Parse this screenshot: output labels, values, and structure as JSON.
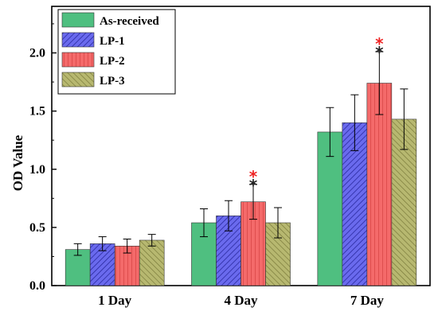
{
  "chart_data": {
    "type": "bar",
    "ylabel": "OD Value",
    "xlabel": "",
    "ylim": [
      0.0,
      2.4
    ],
    "yticks": [
      "0.0",
      "0.5",
      "1.0",
      "1.5",
      "2.0"
    ],
    "grid": false,
    "legend_position": "top-left",
    "categories": [
      "1 Day",
      "4 Day",
      "7 Day"
    ],
    "series": [
      {
        "name": "As-received",
        "color": "#4fbf80",
        "pattern": "solid",
        "values": [
          0.31,
          0.54,
          1.32
        ],
        "errors": [
          0.05,
          0.12,
          0.21
        ]
      },
      {
        "name": "LP-1",
        "color": "#6a6aee",
        "pattern": "hatch-forward",
        "values": [
          0.36,
          0.6,
          1.4
        ],
        "errors": [
          0.06,
          0.13,
          0.24
        ]
      },
      {
        "name": "LP-2",
        "color": "#f46a6a",
        "pattern": "hatch-vertical",
        "values": [
          0.34,
          0.72,
          1.74
        ],
        "errors": [
          0.06,
          0.15,
          0.27
        ]
      },
      {
        "name": "LP-3",
        "color": "#b7b870",
        "pattern": "hatch-back",
        "values": [
          0.39,
          0.54,
          1.43
        ],
        "errors": [
          0.05,
          0.13,
          0.26
        ]
      }
    ],
    "significance_markers": [
      {
        "category": "4 Day",
        "series": "LP-2",
        "marks": [
          {
            "text": "*",
            "color": "#ee2222"
          },
          {
            "text": "*",
            "color": "#222222"
          }
        ]
      },
      {
        "category": "7 Day",
        "series": "LP-2",
        "marks": [
          {
            "text": "*",
            "color": "#ee2222"
          },
          {
            "text": "*",
            "color": "#222222"
          }
        ]
      }
    ]
  }
}
